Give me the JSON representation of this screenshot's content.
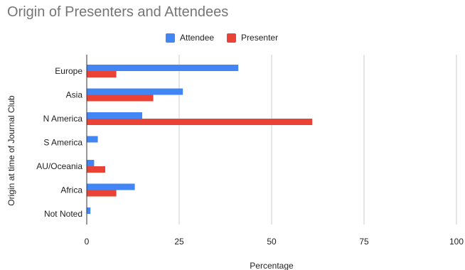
{
  "chart_data": {
    "type": "bar",
    "orientation": "horizontal",
    "title": "Origin of Presenters and Attendees",
    "xlabel": "Percentage",
    "ylabel": "Origin at time of Journal Club",
    "categories": [
      "Europe",
      "Asia",
      "N America",
      "S America",
      "AU/Oceania",
      "Africa",
      "Not Noted"
    ],
    "series": [
      {
        "name": "Attendee",
        "color": "#4285f4",
        "values": [
          41,
          26,
          15,
          3,
          2,
          13,
          1
        ]
      },
      {
        "name": "Presenter",
        "color": "#ea4335",
        "values": [
          8,
          18,
          61,
          0,
          5,
          8,
          0
        ]
      }
    ],
    "xlim": [
      0,
      100
    ],
    "xticks": [
      "0",
      "25",
      "50",
      "75",
      "100"
    ],
    "grid": true,
    "legend_position": "top"
  }
}
